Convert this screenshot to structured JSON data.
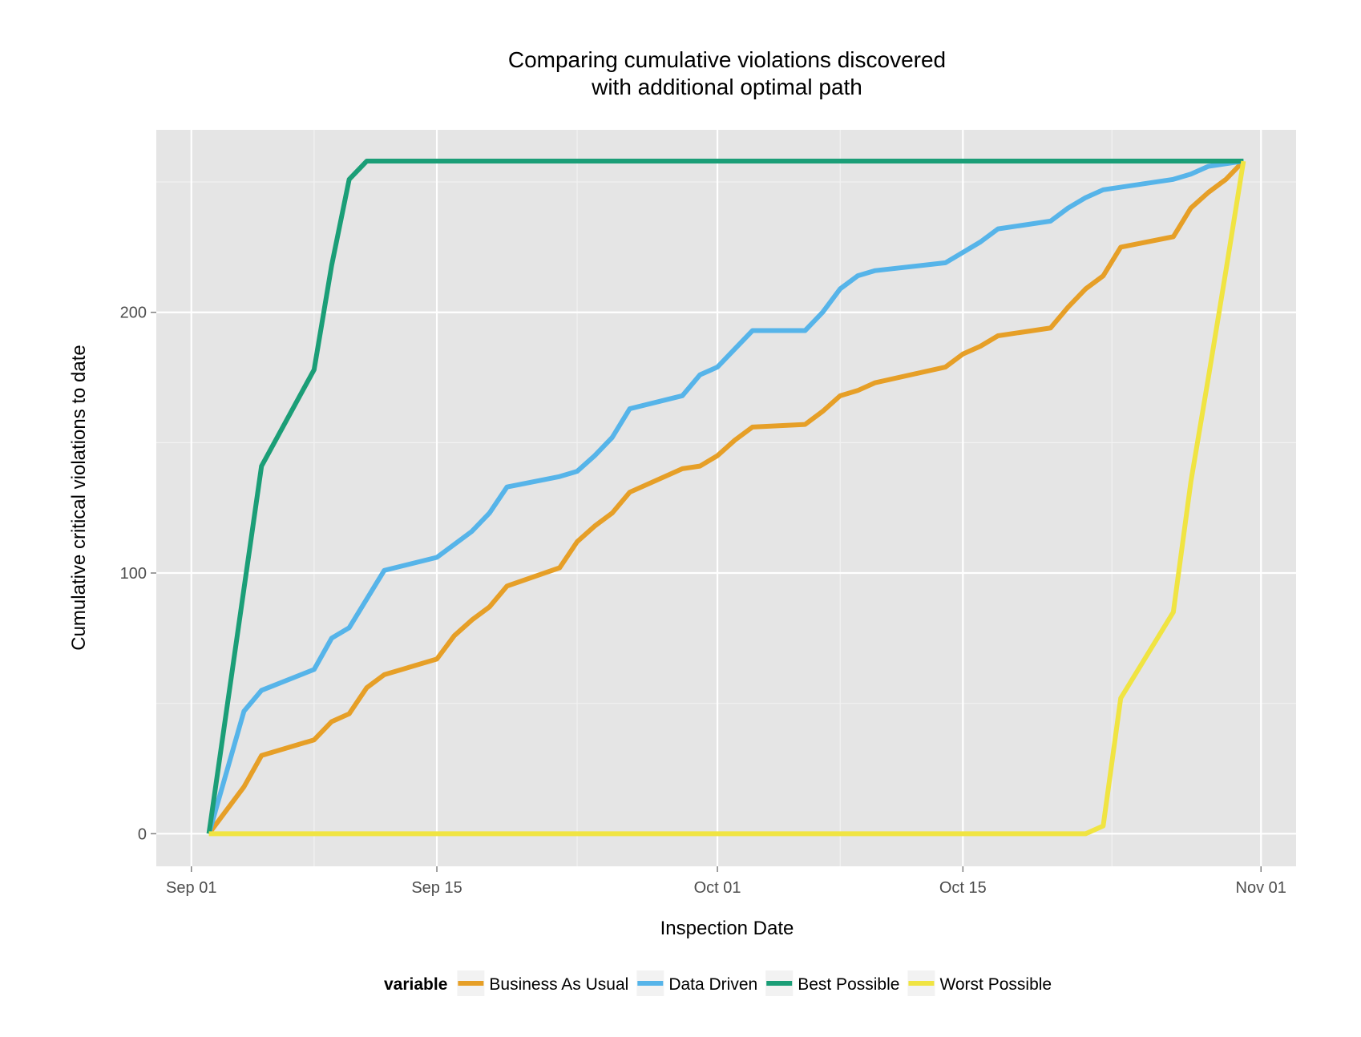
{
  "chart_data": {
    "type": "line",
    "title": "Comparing cumulative violations discovered",
    "subtitle": "with additional optimal path",
    "xlabel": "Inspection Date",
    "ylabel": "Cumulative critical violations to date",
    "x_ticks": [
      {
        "label": "Sep 01",
        "date": "2014-09-01"
      },
      {
        "label": "Sep 15",
        "date": "2014-09-15"
      },
      {
        "label": "Oct 01",
        "date": "2014-10-01"
      },
      {
        "label": "Oct 15",
        "date": "2014-10-15"
      },
      {
        "label": "Nov 01",
        "date": "2014-11-01"
      }
    ],
    "xlim": [
      "2014-08-30",
      "2014-11-03"
    ],
    "y_ticks": [
      0,
      100,
      200
    ],
    "ylim": [
      -12.5,
      270
    ],
    "grid": true,
    "legend": {
      "title": "variable",
      "position": "bottom"
    },
    "series": [
      {
        "name": "Business As Usual",
        "color": "#E69F27",
        "points": [
          [
            "2014-09-02",
            0
          ],
          [
            "2014-09-03",
            9
          ],
          [
            "2014-09-04",
            18
          ],
          [
            "2014-09-05",
            30
          ],
          [
            "2014-09-08",
            36
          ],
          [
            "2014-09-09",
            43
          ],
          [
            "2014-09-10",
            46
          ],
          [
            "2014-09-11",
            56
          ],
          [
            "2014-09-12",
            61
          ],
          [
            "2014-09-15",
            67
          ],
          [
            "2014-09-16",
            76
          ],
          [
            "2014-09-17",
            82
          ],
          [
            "2014-09-18",
            87
          ],
          [
            "2014-09-19",
            95
          ],
          [
            "2014-09-22",
            102
          ],
          [
            "2014-09-23",
            112
          ],
          [
            "2014-09-24",
            118
          ],
          [
            "2014-09-25",
            123
          ],
          [
            "2014-09-26",
            131
          ],
          [
            "2014-09-29",
            140
          ],
          [
            "2014-09-30",
            141
          ],
          [
            "2014-10-01",
            145
          ],
          [
            "2014-10-02",
            151
          ],
          [
            "2014-10-03",
            156
          ],
          [
            "2014-10-06",
            157
          ],
          [
            "2014-10-07",
            162
          ],
          [
            "2014-10-08",
            168
          ],
          [
            "2014-10-09",
            170
          ],
          [
            "2014-10-10",
            173
          ],
          [
            "2014-10-14",
            179
          ],
          [
            "2014-10-15",
            184
          ],
          [
            "2014-10-16",
            187
          ],
          [
            "2014-10-17",
            191
          ],
          [
            "2014-10-20",
            194
          ],
          [
            "2014-10-21",
            202
          ],
          [
            "2014-10-22",
            209
          ],
          [
            "2014-10-23",
            214
          ],
          [
            "2014-10-24",
            225
          ],
          [
            "2014-10-27",
            229
          ],
          [
            "2014-10-28",
            240
          ],
          [
            "2014-10-29",
            246
          ],
          [
            "2014-10-30",
            251
          ],
          [
            "2014-10-31",
            258
          ]
        ]
      },
      {
        "name": "Data Driven",
        "color": "#56B4E9",
        "points": [
          [
            "2014-09-02",
            0
          ],
          [
            "2014-09-04",
            47
          ],
          [
            "2014-09-05",
            55
          ],
          [
            "2014-09-08",
            63
          ],
          [
            "2014-09-09",
            75
          ],
          [
            "2014-09-10",
            79
          ],
          [
            "2014-09-11",
            90
          ],
          [
            "2014-09-12",
            101
          ],
          [
            "2014-09-15",
            106
          ],
          [
            "2014-09-16",
            111
          ],
          [
            "2014-09-17",
            116
          ],
          [
            "2014-09-18",
            123
          ],
          [
            "2014-09-19",
            133
          ],
          [
            "2014-09-22",
            137
          ],
          [
            "2014-09-23",
            139
          ],
          [
            "2014-09-24",
            145
          ],
          [
            "2014-09-25",
            152
          ],
          [
            "2014-09-26",
            163
          ],
          [
            "2014-09-29",
            168
          ],
          [
            "2014-09-30",
            176
          ],
          [
            "2014-10-01",
            179
          ],
          [
            "2014-10-02",
            186
          ],
          [
            "2014-10-03",
            193
          ],
          [
            "2014-10-06",
            193
          ],
          [
            "2014-10-07",
            200
          ],
          [
            "2014-10-08",
            209
          ],
          [
            "2014-10-09",
            214
          ],
          [
            "2014-10-10",
            216
          ],
          [
            "2014-10-14",
            219
          ],
          [
            "2014-10-15",
            223
          ],
          [
            "2014-10-16",
            227
          ],
          [
            "2014-10-17",
            232
          ],
          [
            "2014-10-20",
            235
          ],
          [
            "2014-10-21",
            240
          ],
          [
            "2014-10-22",
            244
          ],
          [
            "2014-10-23",
            247
          ],
          [
            "2014-10-27",
            251
          ],
          [
            "2014-10-28",
            253
          ],
          [
            "2014-10-29",
            256
          ],
          [
            "2014-10-31",
            258
          ]
        ]
      },
      {
        "name": "Best Possible",
        "color": "#1B9E77",
        "points": [
          [
            "2014-09-02",
            0
          ],
          [
            "2014-09-05",
            141
          ],
          [
            "2014-09-08",
            178
          ],
          [
            "2014-09-09",
            218
          ],
          [
            "2014-09-10",
            251
          ],
          [
            "2014-09-11",
            258
          ],
          [
            "2014-10-31",
            258
          ]
        ]
      },
      {
        "name": "Worst Possible",
        "color": "#F0E442",
        "points": [
          [
            "2014-09-02",
            0
          ],
          [
            "2014-10-22",
            0
          ],
          [
            "2014-10-23",
            3
          ],
          [
            "2014-10-24",
            52
          ],
          [
            "2014-10-27",
            85
          ],
          [
            "2014-10-28",
            135
          ],
          [
            "2014-10-29",
            175
          ],
          [
            "2014-10-30",
            216
          ],
          [
            "2014-10-31",
            258
          ]
        ]
      }
    ]
  }
}
